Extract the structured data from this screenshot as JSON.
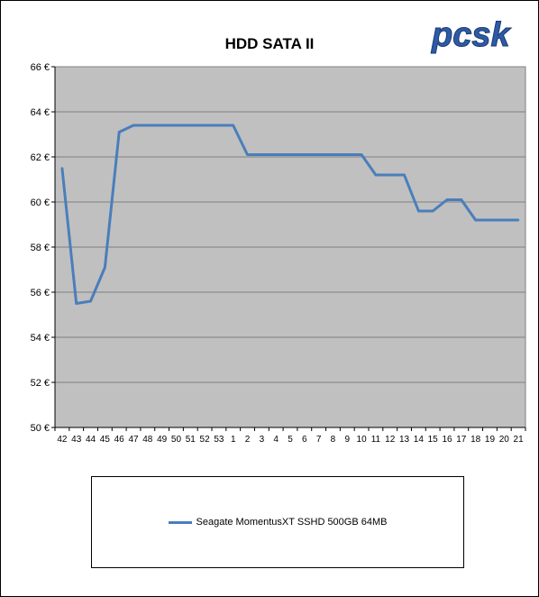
{
  "logo": {
    "text": "pcsk"
  },
  "chart_data": {
    "type": "line",
    "title": "HDD SATA II",
    "xlabel": "",
    "ylabel": "",
    "ylim": [
      50,
      66
    ],
    "y_ticks": [
      50,
      52,
      54,
      56,
      58,
      60,
      62,
      64,
      66
    ],
    "y_tick_suffix": " €",
    "grid": true,
    "legend_position": "bottom",
    "plot_background": "#c0c0c0",
    "categories": [
      "42",
      "43",
      "44",
      "45",
      "46",
      "47",
      "48",
      "49",
      "50",
      "51",
      "52",
      "53",
      "1",
      "2",
      "3",
      "4",
      "5",
      "6",
      "7",
      "8",
      "9",
      "10",
      "11",
      "12",
      "13",
      "14",
      "15",
      "16",
      "17",
      "18",
      "19",
      "20",
      "21"
    ],
    "series": [
      {
        "name": "Seagate MomentusXT SSHD 500GB 64MB",
        "color": "#4a7ebb",
        "values": [
          61.5,
          55.5,
          55.6,
          57.1,
          63.1,
          63.4,
          63.4,
          63.4,
          63.4,
          63.4,
          63.4,
          63.4,
          63.4,
          62.1,
          62.1,
          62.1,
          62.1,
          62.1,
          62.1,
          62.1,
          62.1,
          62.1,
          61.2,
          61.2,
          61.2,
          59.6,
          59.6,
          60.1,
          60.1,
          59.2,
          59.2,
          59.2,
          59.2
        ]
      }
    ]
  }
}
